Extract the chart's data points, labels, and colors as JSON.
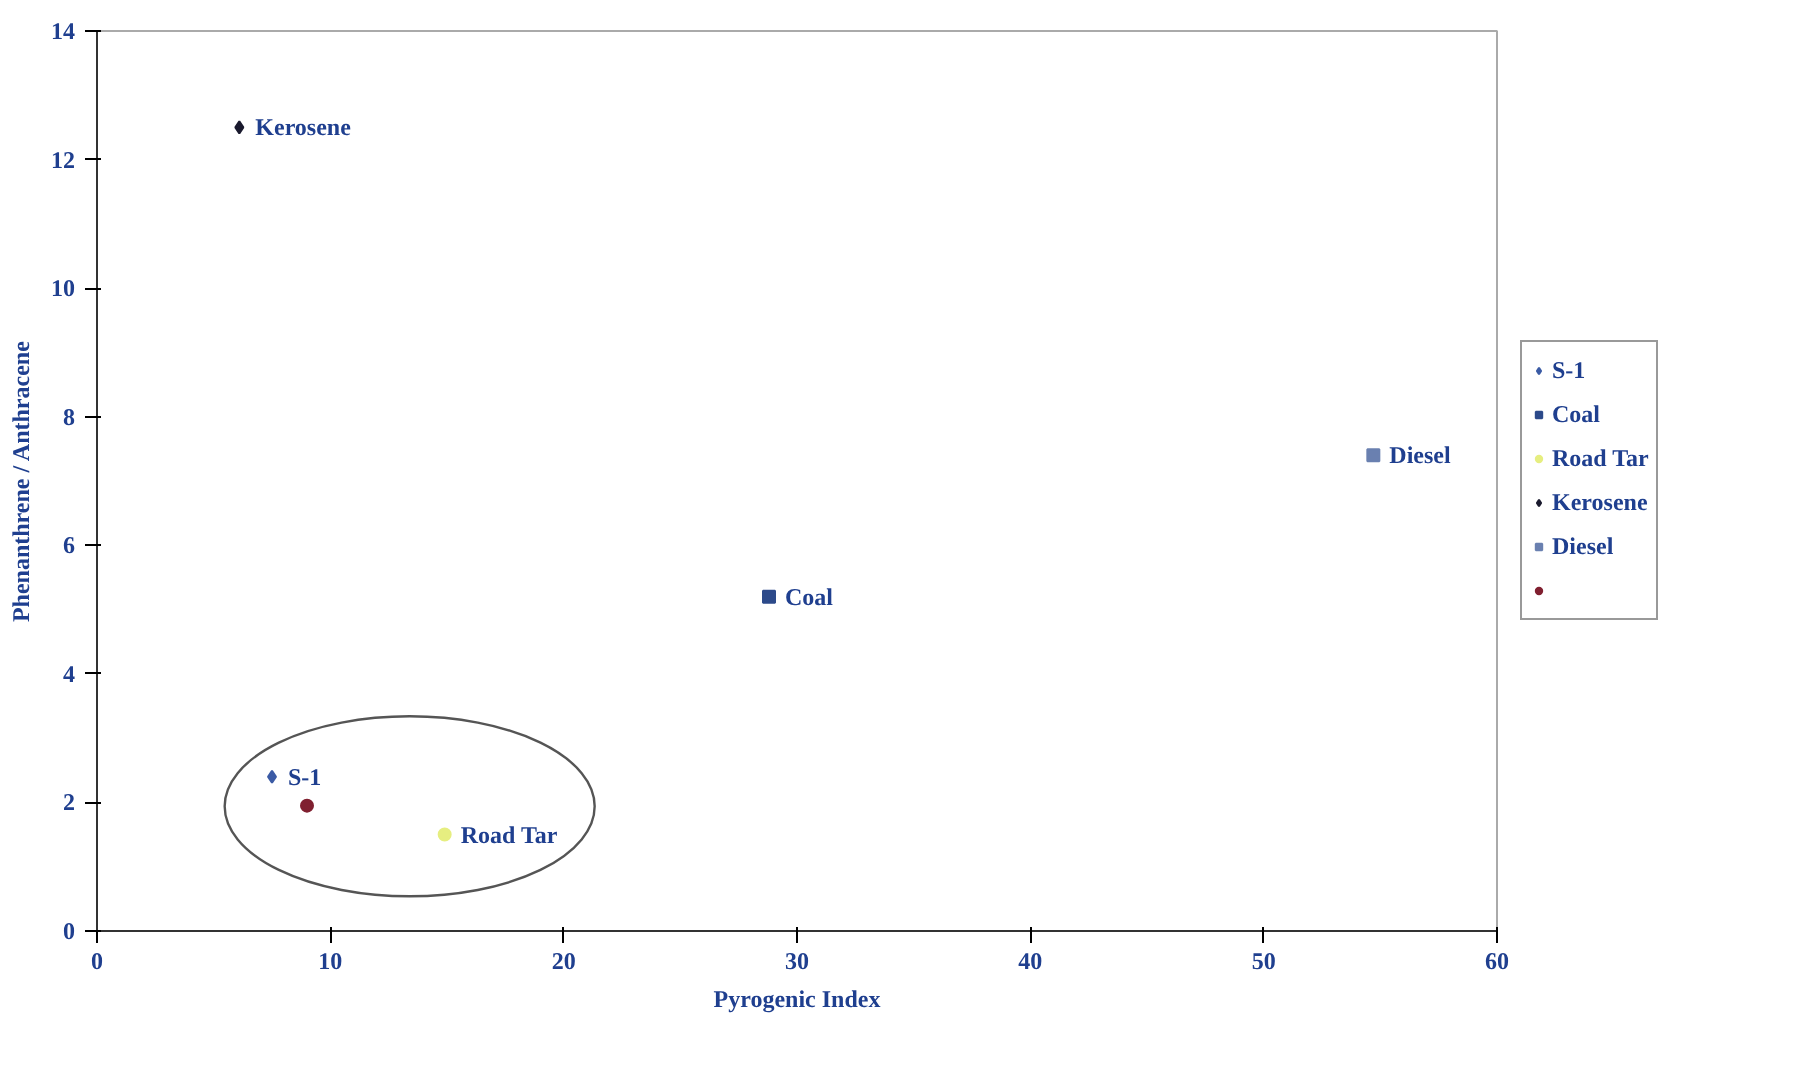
{
  "chart_data": {
    "type": "scatter",
    "xlabel": "Pyrogenic Index",
    "ylabel": "Phenanthrene / Anthracene",
    "xlim": [
      0,
      60
    ],
    "xticks": [
      0,
      10,
      20,
      30,
      40,
      50,
      60
    ],
    "ylim": [
      0,
      14
    ],
    "yticks": [
      0,
      2,
      4,
      6,
      8,
      10,
      12,
      14
    ],
    "grid": false,
    "legend": "right",
    "series": [
      {
        "name": "S-1",
        "color": "#3b5ba5",
        "marker": "diamond",
        "x": [
          7.5
        ],
        "values": [
          2.4
        ]
      },
      {
        "name": "Coal",
        "color": "#2c4a8a",
        "marker": "square",
        "x": [
          28.8
        ],
        "values": [
          5.2
        ]
      },
      {
        "name": "Road Tar",
        "color": "#e6ee80",
        "marker": "circle",
        "x": [
          14.9
        ],
        "values": [
          1.5
        ]
      },
      {
        "name": "Kerosene",
        "color": "#1a1a2e",
        "marker": "diamond",
        "x": [
          6.1
        ],
        "values": [
          12.5
        ]
      },
      {
        "name": "Diesel",
        "color": "#6a80b0",
        "marker": "square",
        "x": [
          54.7
        ],
        "values": [
          7.4
        ]
      },
      {
        "color": "#802030",
        "marker": "circle",
        "x": [
          9.0
        ],
        "values": [
          1.95
        ]
      }
    ]
  }
}
